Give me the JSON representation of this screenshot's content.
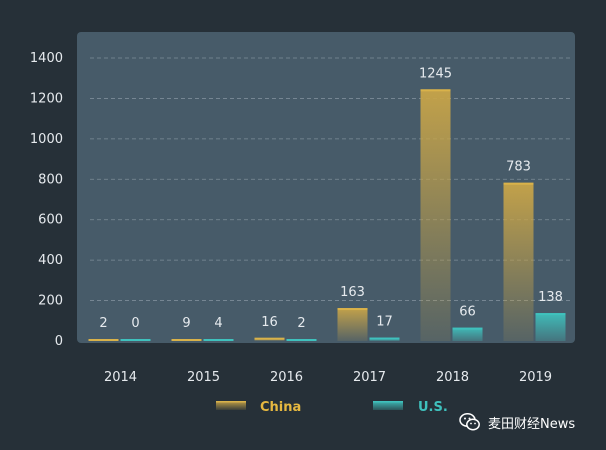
{
  "chart_data": {
    "type": "bar",
    "categories": [
      "2014",
      "2015",
      "2016",
      "2017",
      "2018",
      "2019"
    ],
    "series": [
      {
        "name": "China",
        "values": [
          2,
          9,
          16,
          163,
          1245,
          783
        ],
        "color": "#e6b840"
      },
      {
        "name": "U.S.",
        "values": [
          0,
          4,
          2,
          17,
          66,
          138
        ],
        "color": "#3fc1bd"
      }
    ],
    "y_ticks": [
      "0",
      "200",
      "400",
      "600",
      "800",
      "1000",
      "1200",
      "1400"
    ],
    "ylim": [
      0,
      1400
    ],
    "grid": true,
    "legend_position": "bottom",
    "title": "",
    "xlabel": "",
    "ylabel": ""
  },
  "colors": {
    "page_background": "#263038",
    "plot_background": "#475b69",
    "axis_text": "#e6eaee",
    "china_legend_text": "#e6b840",
    "us_legend_text": "#3fc1bd"
  },
  "watermark": {
    "text": "麦田财经News",
    "icon": "wechat-icon"
  }
}
